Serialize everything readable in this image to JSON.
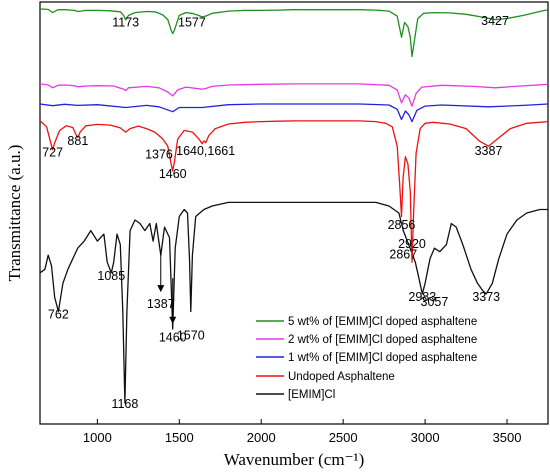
{
  "chart_data": {
    "type": "line",
    "xlabel": "Wavenumber (cm⁻¹)",
    "ylabel": "Transmittance (a.u.)",
    "xlim": [
      650,
      3750
    ],
    "xticks": [
      1000,
      1500,
      2000,
      2500,
      3000,
      3500
    ],
    "xtick_labels": [
      "1000",
      "1500",
      "2000",
      "2500",
      "3000",
      "3500"
    ],
    "legend_position": "bottom-right",
    "series": [
      {
        "name": "5 wt% of [EMIM]Cl doped asphaltene",
        "color": "#1f8f1f",
        "x": [
          650,
          700,
          727,
          760,
          800,
          860,
          881,
          930,
          1000,
          1080,
          1140,
          1160,
          1173,
          1190,
          1230,
          1300,
          1350,
          1376,
          1400,
          1430,
          1450,
          1460,
          1470,
          1500,
          1540,
          1577,
          1610,
          1640,
          1661,
          1700,
          1800,
          1900,
          2000,
          2100,
          2200,
          2300,
          2400,
          2500,
          2600,
          2700,
          2780,
          2830,
          2856,
          2875,
          2895,
          2910,
          2920,
          2935,
          2955,
          2990,
          3050,
          3150,
          3250,
          3350,
          3427,
          3500,
          3600,
          3700,
          3750
        ],
        "y": [
          0.88,
          0.879,
          0.87,
          0.878,
          0.878,
          0.876,
          0.873,
          0.876,
          0.876,
          0.875,
          0.872,
          0.862,
          0.849,
          0.862,
          0.87,
          0.873,
          0.872,
          0.868,
          0.863,
          0.85,
          0.82,
          0.81,
          0.82,
          0.862,
          0.87,
          0.868,
          0.863,
          0.858,
          0.86,
          0.868,
          0.874,
          0.876,
          0.876,
          0.877,
          0.878,
          0.878,
          0.878,
          0.878,
          0.878,
          0.877,
          0.874,
          0.86,
          0.8,
          0.842,
          0.83,
          0.8,
          0.745,
          0.79,
          0.852,
          0.868,
          0.87,
          0.869,
          0.865,
          0.857,
          0.85,
          0.853,
          0.862,
          0.873,
          0.878
        ]
      },
      {
        "name": "2 wt% of [EMIM]Cl doped asphaltene",
        "color": "#e33be3",
        "x": [
          650,
          700,
          727,
          760,
          800,
          860,
          881,
          930,
          1000,
          1100,
          1160,
          1173,
          1190,
          1300,
          1376,
          1430,
          1460,
          1490,
          1540,
          1640,
          1661,
          1700,
          1800,
          2000,
          2200,
          2400,
          2600,
          2780,
          2830,
          2856,
          2880,
          2900,
          2920,
          2945,
          2980,
          3100,
          3300,
          3427,
          3550,
          3750
        ],
        "y": [
          0.667,
          0.664,
          0.656,
          0.663,
          0.664,
          0.662,
          0.659,
          0.661,
          0.662,
          0.661,
          0.652,
          0.648,
          0.656,
          0.66,
          0.656,
          0.644,
          0.633,
          0.65,
          0.658,
          0.652,
          0.654,
          0.66,
          0.664,
          0.666,
          0.667,
          0.667,
          0.667,
          0.663,
          0.65,
          0.613,
          0.636,
          0.628,
          0.604,
          0.64,
          0.658,
          0.663,
          0.66,
          0.656,
          0.66,
          0.666
        ]
      },
      {
        "name": "1 wt% of [EMIM]Cl doped asphaltene",
        "color": "#2222dd",
        "x": [
          650,
          727,
          800,
          881,
          1000,
          1173,
          1300,
          1376,
          1460,
          1500,
          1640,
          1800,
          2000,
          2300,
          2600,
          2780,
          2830,
          2856,
          2880,
          2900,
          2920,
          2950,
          3000,
          3100,
          3387,
          3600,
          3750
        ],
        "y": [
          0.61,
          0.605,
          0.609,
          0.606,
          0.608,
          0.6,
          0.606,
          0.602,
          0.588,
          0.6,
          0.6,
          0.608,
          0.61,
          0.61,
          0.61,
          0.607,
          0.595,
          0.566,
          0.59,
          0.58,
          0.56,
          0.592,
          0.604,
          0.607,
          0.602,
          0.606,
          0.61
        ]
      },
      {
        "name": "Undoped Asphaltene",
        "color": "#ee1111",
        "x": [
          650,
          690,
          715,
          727,
          740,
          770,
          810,
          850,
          870,
          881,
          895,
          930,
          1000,
          1080,
          1140,
          1173,
          1200,
          1250,
          1300,
          1350,
          1376,
          1400,
          1430,
          1450,
          1460,
          1470,
          1490,
          1530,
          1580,
          1620,
          1640,
          1650,
          1661,
          1680,
          1720,
          1800,
          1900,
          2000,
          2100,
          2200,
          2300,
          2400,
          2500,
          2600,
          2700,
          2760,
          2800,
          2830,
          2845,
          2856,
          2866,
          2880,
          2895,
          2910,
          2920,
          2930,
          2945,
          2970,
          3000,
          3050,
          3150,
          3250,
          3330,
          3387,
          3440,
          3520,
          3620,
          3750
        ],
        "y": [
          0.562,
          0.545,
          0.5,
          0.48,
          0.5,
          0.535,
          0.548,
          0.543,
          0.522,
          0.515,
          0.53,
          0.548,
          0.552,
          0.55,
          0.542,
          0.53,
          0.54,
          0.547,
          0.54,
          0.53,
          0.52,
          0.51,
          0.49,
          0.44,
          0.42,
          0.445,
          0.51,
          0.535,
          0.53,
          0.51,
          0.497,
          0.505,
          0.5,
          0.52,
          0.54,
          0.553,
          0.558,
          0.56,
          0.561,
          0.562,
          0.562,
          0.562,
          0.562,
          0.562,
          0.56,
          0.555,
          0.545,
          0.49,
          0.38,
          0.29,
          0.4,
          0.46,
          0.44,
          0.36,
          0.16,
          0.3,
          0.47,
          0.54,
          0.555,
          0.558,
          0.553,
          0.54,
          0.505,
          0.49,
          0.51,
          0.54,
          0.555,
          0.56
        ]
      },
      {
        "name": "[EMIM]Cl",
        "color": "#111111",
        "x": [
          650,
          680,
          700,
          720,
          740,
          762,
          790,
          820,
          850,
          880,
          920,
          960,
          1000,
          1040,
          1060,
          1085,
          1100,
          1120,
          1140,
          1155,
          1168,
          1180,
          1200,
          1230,
          1260,
          1290,
          1320,
          1340,
          1360,
          1387,
          1410,
          1440,
          1460,
          1475,
          1500,
          1530,
          1550,
          1562,
          1570,
          1580,
          1600,
          1650,
          1700,
          1800,
          1900,
          2000,
          2100,
          2200,
          2300,
          2400,
          2500,
          2600,
          2700,
          2780,
          2840,
          2867,
          2900,
          2940,
          2960,
          2983,
          3000,
          3030,
          3057,
          3090,
          3130,
          3160,
          3190,
          3230,
          3280,
          3320,
          3350,
          3373,
          3410,
          3450,
          3500,
          3560,
          3620,
          3700,
          3750
        ],
        "y": [
          0.13,
          0.14,
          0.18,
          0.15,
          0.06,
          0.02,
          0.1,
          0.14,
          0.17,
          0.2,
          0.22,
          0.25,
          0.22,
          0.24,
          0.16,
          0.13,
          0.16,
          0.24,
          0.21,
          0.02,
          -0.24,
          0.02,
          0.25,
          0.28,
          0.27,
          0.25,
          0.27,
          0.22,
          0.27,
          0.18,
          0.26,
          0.23,
          -0.03,
          0.2,
          0.29,
          0.31,
          0.3,
          0.17,
          0.02,
          0.18,
          0.29,
          0.31,
          0.32,
          0.33,
          0.33,
          0.33,
          0.33,
          0.33,
          0.33,
          0.33,
          0.33,
          0.33,
          0.33,
          0.32,
          0.3,
          0.25,
          0.21,
          0.16,
          0.12,
          0.07,
          0.1,
          0.17,
          0.2,
          0.19,
          0.21,
          0.27,
          0.26,
          0.21,
          0.14,
          0.1,
          0.08,
          0.07,
          0.1,
          0.17,
          0.24,
          0.28,
          0.3,
          0.31,
          0.31
        ]
      }
    ],
    "annotations": [
      {
        "text": "1173",
        "x": 1173,
        "y": 0.83
      },
      {
        "text": "1577",
        "x": 1577,
        "y": 0.83
      },
      {
        "text": "3427",
        "x": 3427,
        "y": 0.835
      },
      {
        "text": "881",
        "x": 881,
        "y": 0.493
      },
      {
        "text": "727",
        "x": 727,
        "y": 0.46
      },
      {
        "text": "1376",
        "x": 1376,
        "y": 0.455
      },
      {
        "text": "1640,1661",
        "x": 1661,
        "y": 0.465
      },
      {
        "text": "1460",
        "x": 1460,
        "y": 0.4
      },
      {
        "text": "3387",
        "x": 3387,
        "y": 0.465
      },
      {
        "text": "2856",
        "x": 2856,
        "y": 0.255
      },
      {
        "text": "2920",
        "x": 2920,
        "y": 0.2
      },
      {
        "text": "1085",
        "x": 1085,
        "y": 0.11
      },
      {
        "text": "762",
        "x": 762,
        "y": 0.0
      },
      {
        "text": "1387",
        "x": 1387,
        "y": 0.03
      },
      {
        "text": "1460",
        "x": 1460,
        "y": -0.065
      },
      {
        "text": "1570",
        "x": 1570,
        "y": -0.06
      },
      {
        "text": "1168",
        "x": 1168,
        "y": -0.255
      },
      {
        "text": "2867",
        "x": 2867,
        "y": 0.17
      },
      {
        "text": "2983",
        "x": 2983,
        "y": 0.05
      },
      {
        "text": "3057",
        "x": 3057,
        "y": 0.035
      },
      {
        "text": "3373",
        "x": 3373,
        "y": 0.05
      }
    ],
    "arrows": [
      {
        "x": 1387,
        "y_from": 0.185,
        "y_to": 0.075
      },
      {
        "x": 1460,
        "y_from": 0.115,
        "y_to": -0.015
      }
    ]
  }
}
